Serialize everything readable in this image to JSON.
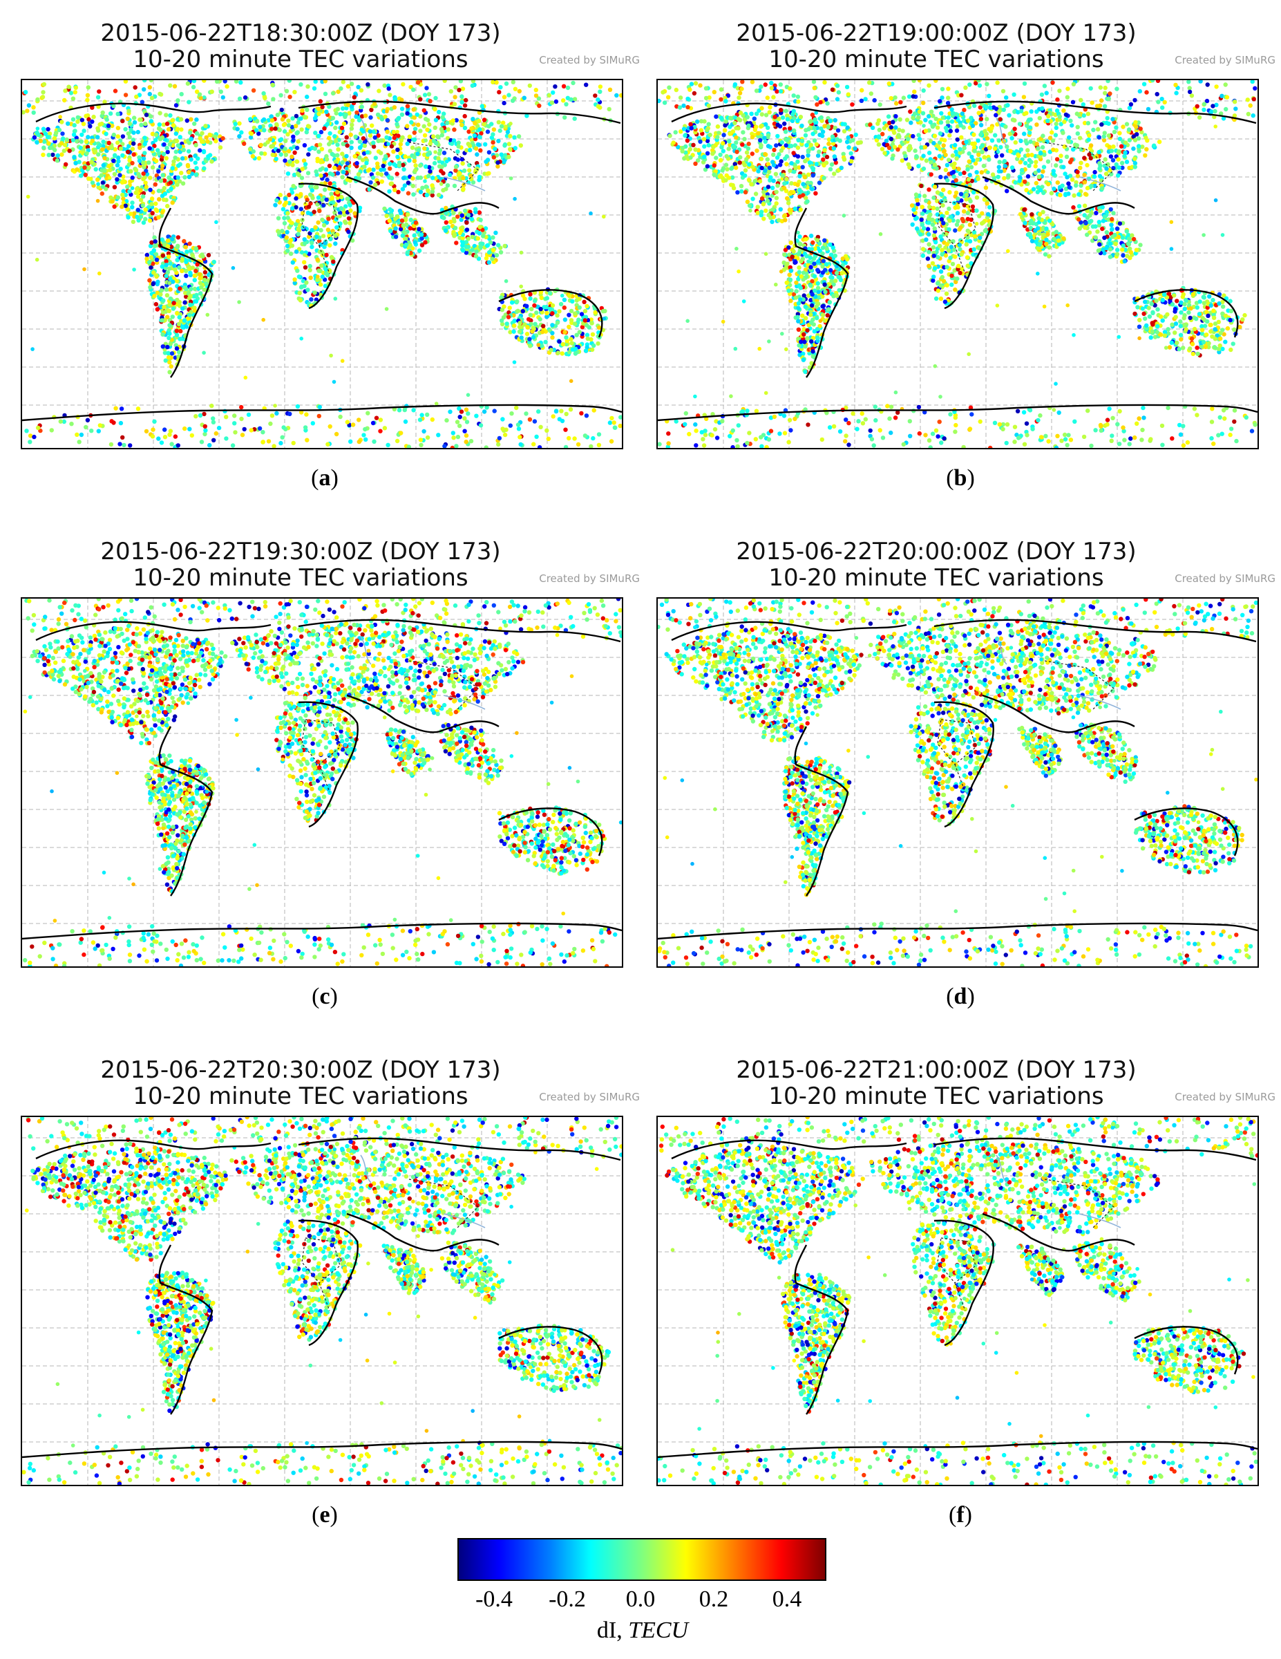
{
  "panels": [
    {
      "title": "2015-06-22T18:30:00Z (DOY 173)",
      "subtitle": "10-20 minute TEC variations",
      "credit": "Created by SIMuRG",
      "label": "a",
      "seed": 11
    },
    {
      "title": "2015-06-22T19:00:00Z (DOY 173)",
      "subtitle": "10-20 minute TEC variations",
      "credit": "Created by SIMuRG",
      "label": "b",
      "seed": 23
    },
    {
      "title": "2015-06-22T19:30:00Z (DOY 173)",
      "subtitle": "10-20 minute TEC variations",
      "credit": "Created by SIMuRG",
      "label": "c",
      "seed": 37
    },
    {
      "title": "2015-06-22T20:00:00Z (DOY 173)",
      "subtitle": "10-20 minute TEC variations",
      "credit": "Created by SIMuRG",
      "label": "d",
      "seed": 41
    },
    {
      "title": "2015-06-22T20:30:00Z (DOY 173)",
      "subtitle": "10-20 minute TEC variations",
      "credit": "Created by SIMuRG",
      "label": "e",
      "seed": 53
    },
    {
      "title": "2015-06-22T21:00:00Z (DOY 173)",
      "subtitle": "10-20 minute TEC variations",
      "credit": "Created by SIMuRG",
      "label": "f",
      "seed": 67
    }
  ],
  "colorbar": {
    "ticks": [
      "-0.4",
      "-0.2",
      "0.0",
      "0.2",
      "0.4"
    ],
    "tick_values": [
      -0.4,
      -0.2,
      0.0,
      0.2,
      0.4
    ],
    "range": [
      -0.5,
      0.5
    ],
    "label_main": "dI, ",
    "label_unit": "TECU",
    "colormap": "jet"
  }
}
